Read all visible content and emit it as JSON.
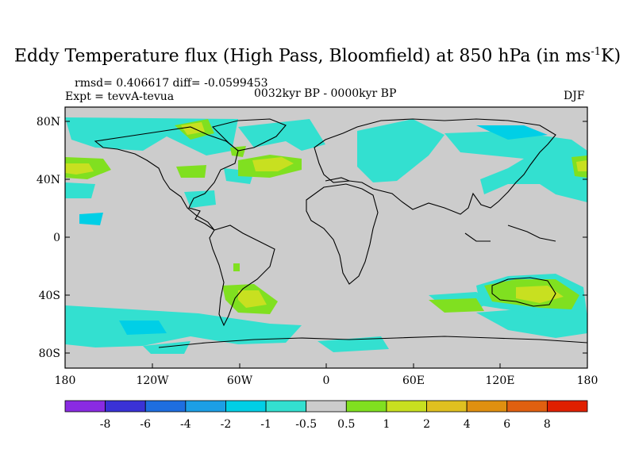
{
  "title": {
    "main": "Eddy Temperature flux (High Pass, Bloomfield) at 850 hPa (in ms",
    "superscript": "-1",
    "end": "K)"
  },
  "stats": "rmsd= 0.406617 diff= -0.0599453",
  "experiment": "Expt = tevvA-tevua",
  "period": "0032kyr BP - 0000kyr BP",
  "season": "DJF",
  "lat_ticks": [
    "80N",
    "40N",
    "0",
    "40S",
    "80S"
  ],
  "lon_ticks": [
    "180",
    "120W",
    "60W",
    "0",
    "60E",
    "120E",
    "180"
  ],
  "map": {
    "background_color": "#cccccc"
  },
  "colorbar": {
    "colors": [
      "#8a2be2",
      "#3a32d6",
      "#1e6ee0",
      "#1c9fe6",
      "#00cfe6",
      "#33e0d0",
      "#cccccc",
      "#80e020",
      "#c8e020",
      "#e0c020",
      "#e09010",
      "#e06010",
      "#e02000"
    ],
    "labels": [
      "-8",
      "-6",
      "-4",
      "-2",
      "-1",
      "-0.5",
      "0.5",
      "1",
      "2",
      "4",
      "6",
      "8"
    ]
  }
}
